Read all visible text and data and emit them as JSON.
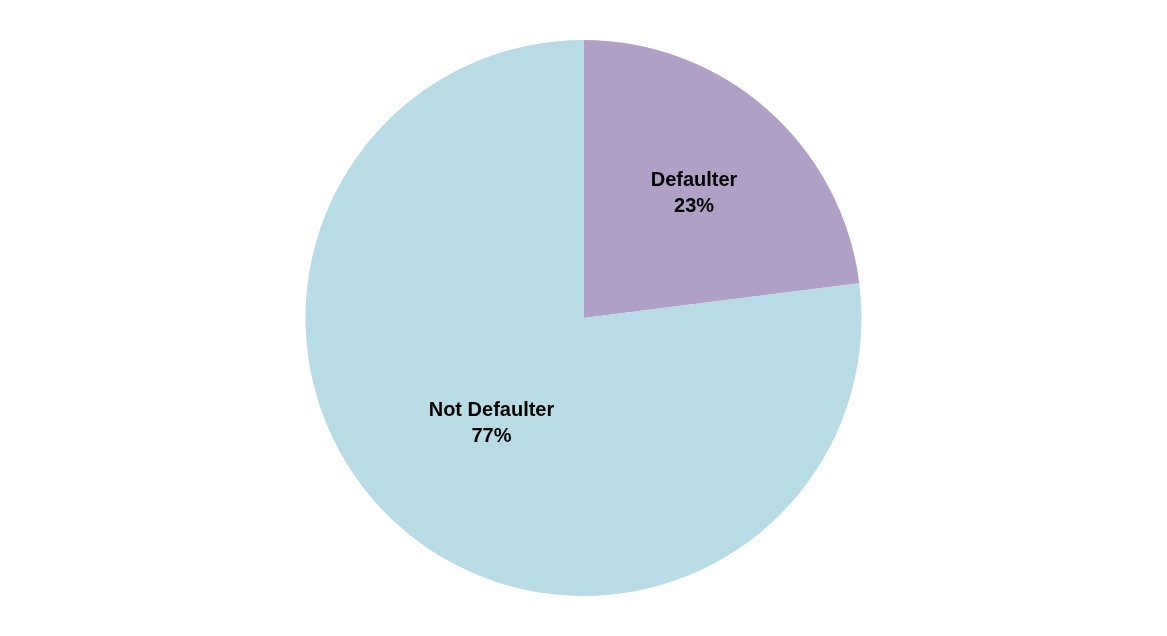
{
  "chart_data": {
    "type": "pie",
    "categories": [
      "Defaulter",
      "Not Defaulter"
    ],
    "values": [
      23,
      77
    ],
    "value_labels": [
      "23%",
      "77%"
    ],
    "colors": [
      "#b0a0c8",
      "#b7dce6"
    ],
    "legend": false
  }
}
